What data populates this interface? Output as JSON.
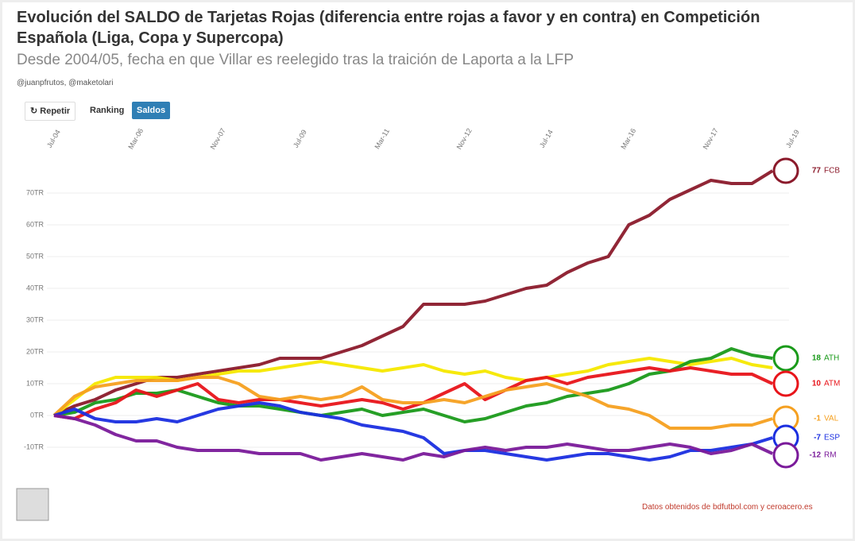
{
  "header": {
    "title": "Evolución del SALDO de Tarjetas Rojas (diferencia entre rojas a favor y en contra) en Competición Española (Liga, Copa y Supercopa)",
    "subtitle": "Desde 2004/05, fecha en que Villar es reelegido tras la traición de Laporta a la LFP",
    "credits": "@juanpfrutos, @maketolari",
    "buttons": [
      "Repetir",
      "Ranking",
      "Saldos"
    ]
  },
  "footer": "Datos obtenidos de bdfutbol.com y ceroacero.es",
  "chart_data": {
    "type": "line",
    "categories": [
      "Jul-04",
      null,
      null,
      null,
      "Mar-06",
      null,
      null,
      null,
      "Nov-07",
      null,
      null,
      null,
      "Jul-09",
      null,
      null,
      null,
      "Mar-11",
      null,
      null,
      null,
      "Nov-12",
      null,
      null,
      null,
      "Jul-14",
      null,
      null,
      null,
      "Mar-16",
      null,
      null,
      null,
      "Nov-17",
      null,
      null,
      null,
      "Jul-19"
    ],
    "ylim": [
      -17,
      78
    ],
    "yticks": [
      {
        "value": -10,
        "label": "-10TR"
      },
      {
        "value": 0,
        "label": "0TR"
      },
      {
        "value": 10,
        "label": "10TR"
      },
      {
        "value": 20,
        "label": "20TR"
      },
      {
        "value": 30,
        "label": "30TR"
      },
      {
        "value": 40,
        "label": "40TR"
      },
      {
        "value": 50,
        "label": "50TR"
      },
      {
        "value": 60,
        "label": "60TR"
      },
      {
        "value": 70,
        "label": "70TR"
      }
    ],
    "grid": true,
    "series": [
      {
        "name": "FCB",
        "color": "#8b1a2b",
        "values": [
          0,
          3,
          5,
          8,
          10,
          12,
          12,
          13,
          14,
          15,
          16,
          18,
          18,
          18,
          20,
          22,
          25,
          28,
          35,
          35,
          35,
          36,
          38,
          40,
          41,
          45,
          48,
          50,
          60,
          63,
          68,
          71,
          74,
          73,
          73,
          77,
          null
        ]
      },
      {
        "color": "#f5e800",
        "values": [
          0,
          5,
          10,
          12,
          12,
          12,
          11,
          12,
          13,
          14,
          14,
          15,
          16,
          17,
          16,
          15,
          14,
          15,
          16,
          14,
          13,
          14,
          12,
          11,
          12,
          13,
          14,
          16,
          17,
          18,
          17,
          16,
          17,
          18,
          16,
          15,
          null
        ]
      },
      {
        "name": "ATH",
        "color": "#1a9a1a",
        "values": [
          0,
          1,
          4,
          5,
          7,
          7,
          8,
          6,
          4,
          3,
          3,
          2,
          1,
          0,
          1,
          2,
          0,
          1,
          2,
          0,
          -2,
          -1,
          1,
          3,
          4,
          6,
          7,
          8,
          10,
          13,
          14,
          17,
          18,
          21,
          19,
          18,
          null
        ]
      },
      {
        "name": "ATM",
        "color": "#e8141a",
        "values": [
          0,
          -1,
          2,
          4,
          8,
          6,
          8,
          10,
          5,
          4,
          5,
          5,
          4,
          3,
          4,
          5,
          4,
          2,
          4,
          7,
          10,
          5,
          8,
          11,
          12,
          10,
          12,
          13,
          14,
          15,
          14,
          15,
          14,
          13,
          13,
          10,
          null
        ]
      },
      {
        "name": "VAL",
        "color": "#f5a020",
        "values": [
          0,
          6,
          9,
          10,
          11,
          11,
          11,
          12,
          12,
          10,
          6,
          5,
          6,
          5,
          6,
          9,
          5,
          4,
          4,
          5,
          4,
          6,
          8,
          9,
          10,
          8,
          6,
          3,
          2,
          0,
          -4,
          -4,
          -4,
          -3,
          -3,
          -1,
          null
        ]
      },
      {
        "name": "ESP",
        "color": "#1a2ee0",
        "values": [
          0,
          2,
          -1,
          -2,
          -2,
          -1,
          -2,
          0,
          2,
          3,
          4,
          3,
          1,
          0,
          -1,
          -3,
          -4,
          -5,
          -7,
          -12,
          -11,
          -11,
          -12,
          -13,
          -14,
          -13,
          -12,
          -12,
          -13,
          -14,
          -13,
          -11,
          -11,
          -10,
          -9,
          -7,
          null
        ]
      },
      {
        "name": "RM",
        "color": "#7a1a9a",
        "values": [
          0,
          -1,
          -3,
          -6,
          -8,
          -8,
          -10,
          -11,
          -11,
          -11,
          -12,
          -12,
          -12,
          -14,
          -13,
          -12,
          -13,
          -14,
          -12,
          -13,
          -11,
          -10,
          -11,
          -10,
          -10,
          -9,
          -10,
          -11,
          -11,
          -10,
          -9,
          -10,
          -12,
          -11,
          -9,
          -12,
          null
        ]
      }
    ]
  }
}
